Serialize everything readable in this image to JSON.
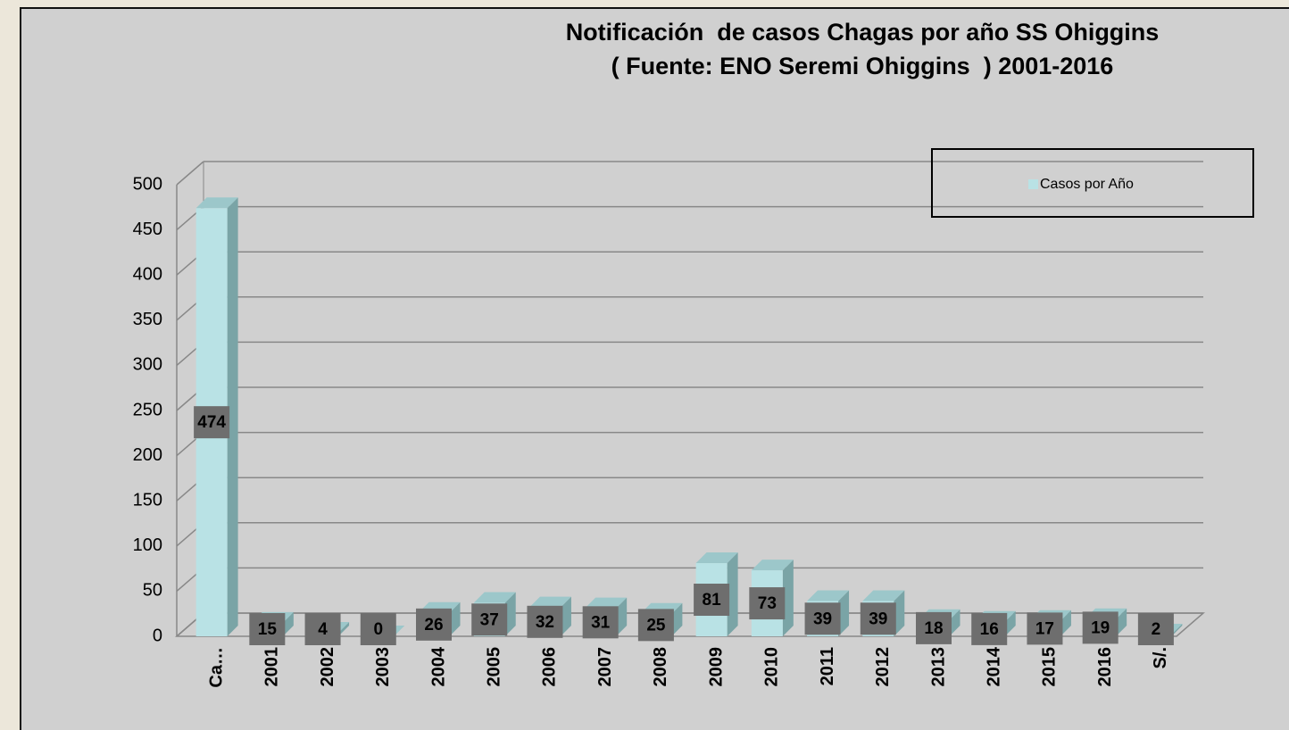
{
  "chart_data": {
    "type": "bar3d",
    "title": "Notificación  de casos Chagas por año SS Ohiggins",
    "subtitle": "( Fuente: ENO Seremi Ohiggins  ) 2001-2016",
    "categories": [
      "Ca…",
      "2001",
      "2002",
      "2003",
      "2004",
      "2005",
      "2006",
      "2007",
      "2008",
      "2009",
      "2010",
      "2011",
      "2012",
      "2013",
      "2014",
      "2015",
      "2016",
      "S/."
    ],
    "series": [
      {
        "name": "Casos por Año",
        "color": "#b9e2e5",
        "values": [
          474,
          15,
          4,
          0,
          26,
          37,
          32,
          31,
          25,
          81,
          73,
          39,
          39,
          18,
          16,
          17,
          19,
          2
        ]
      }
    ],
    "ylim": [
      0,
      500
    ],
    "yticks": [
      0,
      50,
      100,
      150,
      200,
      250,
      300,
      350,
      400,
      450,
      500
    ],
    "grid": true,
    "legend": "top-right",
    "data_labels": true
  }
}
